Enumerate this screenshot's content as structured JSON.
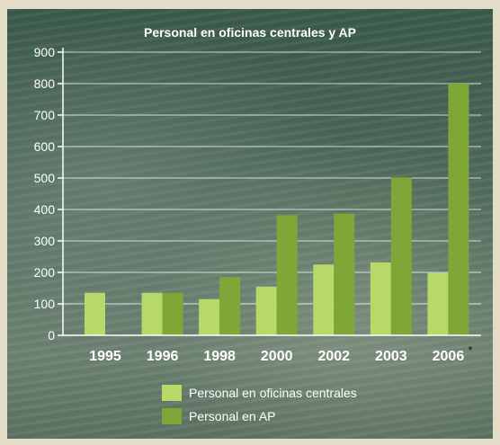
{
  "chart_data": {
    "type": "bar",
    "title": "Personal en oficinas centrales y AP",
    "categories": [
      "1995",
      "1996",
      "1998",
      "2000",
      "2002",
      "2003",
      "2006"
    ],
    "category_note": {
      "index": 6,
      "mark": "*"
    },
    "ylim": [
      0,
      900
    ],
    "yticks": [
      0,
      100,
      200,
      300,
      400,
      500,
      600,
      700,
      800,
      900
    ],
    "grid": true,
    "legend_position": "bottom",
    "series": [
      {
        "name": "Personal en oficinas centrales",
        "color": "#b7d96a",
        "values": [
          135,
          135,
          115,
          155,
          225,
          232,
          198
        ]
      },
      {
        "name": "Personal en AP",
        "color": "#7ea737",
        "values": [
          null,
          135,
          185,
          382,
          387,
          502,
          800
        ]
      }
    ]
  }
}
